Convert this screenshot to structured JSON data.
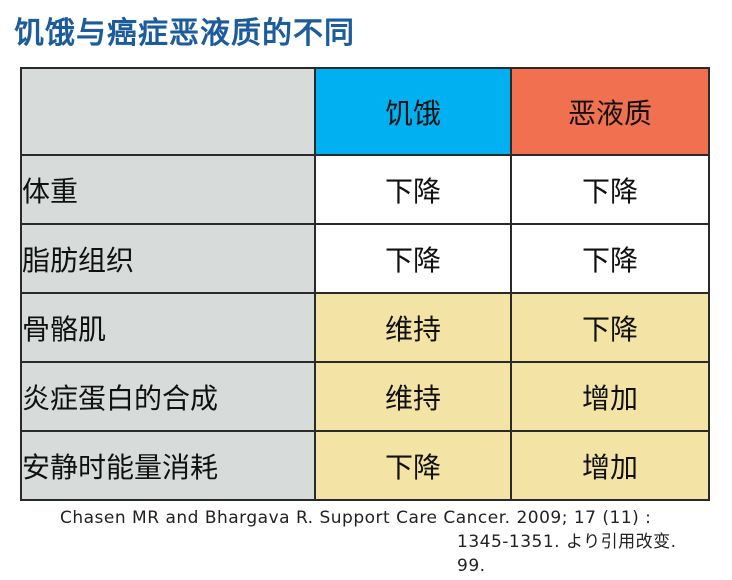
{
  "title": "饥饿与癌症恶液质的不同",
  "colors": {
    "title": "#1c5c9c",
    "starvation_header": "#00b0f0",
    "cachexia_header": "#f07050",
    "row_label_bg": "#d7dcdb",
    "highlight_bg": "#f3e4a6"
  },
  "table": {
    "corner": "",
    "columns": [
      {
        "label": "饥饿",
        "color": "#00b0f0"
      },
      {
        "label": "恶液质",
        "color": "#f07050"
      }
    ],
    "rows": [
      {
        "label": "体重",
        "starvation": "下降",
        "cachexia": "下降",
        "highlight": false
      },
      {
        "label": "脂肪组织",
        "starvation": "下降",
        "cachexia": "下降",
        "highlight": false
      },
      {
        "label": "骨骼肌",
        "starvation": "维持",
        "cachexia": "下降",
        "highlight": true
      },
      {
        "label": "炎症蛋白的合成",
        "starvation": "维持",
        "cachexia": "增加",
        "highlight": true
      },
      {
        "label": "安静时能量消耗",
        "starvation": "下降",
        "cachexia": "增加",
        "highlight": true
      }
    ]
  },
  "citation": {
    "line1": "Chasen MR and Bhargava R. Support Care Cancer. 2009; 17 (11) :",
    "line2": "1345-1351. より引用改变.",
    "line3": "99."
  }
}
